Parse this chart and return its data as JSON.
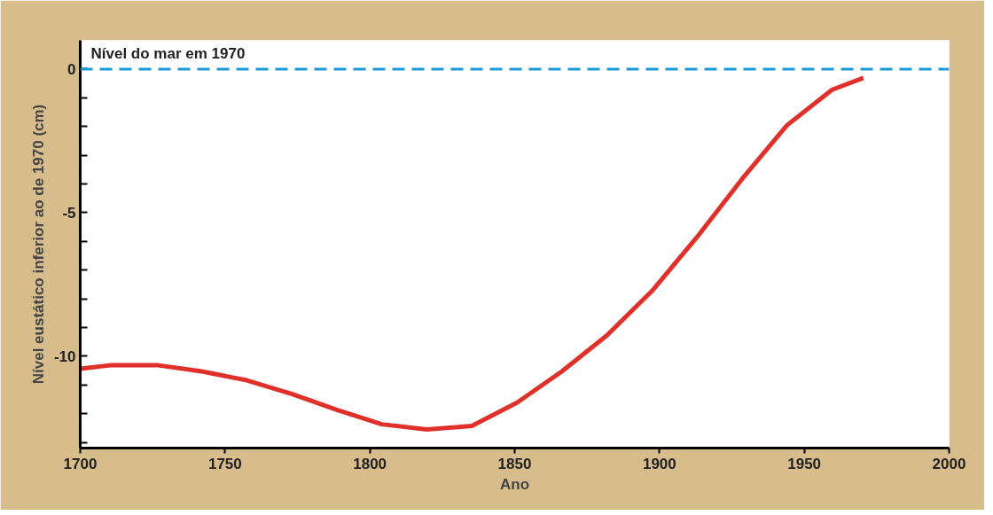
{
  "chart_data": {
    "type": "line",
    "xlabel": "Ano",
    "ylabel": "Nível eustático inferior ao de 1970 (cm)",
    "xlim": [
      1700,
      2000
    ],
    "ylim": [
      -13.2,
      1.0
    ],
    "xticks": [
      1700,
      1750,
      1800,
      1850,
      1900,
      1950,
      2000
    ],
    "yticks": [
      0,
      {
        "value": -1,
        "label": null
      },
      {
        "value": -2,
        "label": null
      },
      {
        "value": -3,
        "label": null
      },
      {
        "value": -4,
        "label": null
      },
      -5,
      {
        "value": -6,
        "label": null
      },
      {
        "value": -7,
        "label": null
      },
      {
        "value": -8,
        "label": null
      },
      {
        "value": -9,
        "label": null
      },
      -10,
      {
        "value": -11,
        "label": null
      },
      {
        "value": -12,
        "label": null
      },
      {
        "value": -13,
        "label": null
      }
    ],
    "grid": false,
    "marker": "none",
    "line_style": "solid",
    "ref_lines": [
      {
        "axis": "y",
        "value": 0,
        "label": "Nível do mar em 1970",
        "color": "#1a9bd7",
        "line_style": "dashed"
      }
    ],
    "series": [
      {
        "color": "#e0302a",
        "x": [
          1700,
          1710.9,
          1726.4,
          1742,
          1757.5,
          1773,
          1788.6,
          1804.1,
          1819.7,
          1835.2,
          1850.8,
          1866.3,
          1881.8,
          1897.4,
          1912.9,
          1928.5,
          1944,
          1959.6,
          1970.4
        ],
        "values": [
          -10.44,
          -10.31,
          -10.31,
          -10.53,
          -10.84,
          -11.31,
          -11.87,
          -12.37,
          -12.55,
          -12.43,
          -11.62,
          -10.53,
          -9.28,
          -7.73,
          -5.86,
          -3.83,
          -1.96,
          -0.72,
          -0.31
        ]
      }
    ]
  }
}
